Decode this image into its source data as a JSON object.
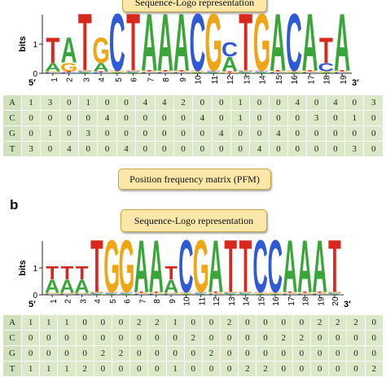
{
  "pfm_banner": "Position frequency matrix (PFM)",
  "colors": {
    "A": "#3aa63a",
    "C": "#2f5ad6",
    "G": "#f0a614",
    "T": "#d8271c"
  },
  "panel_a": {
    "letter": "",
    "banner": "Sequence-Logo representation",
    "ylabel": "bits",
    "yticks": [
      "1",
      "0"
    ],
    "five_prime": "5′",
    "three_prime": "3′",
    "positions": [
      "1",
      "2",
      "3",
      "4",
      "5",
      "6",
      "7",
      "8",
      "9",
      "10",
      "11",
      "12",
      "13",
      "14",
      "15",
      "16",
      "17",
      "18",
      "19"
    ],
    "matrix": [
      {
        "base": "A",
        "values": [
          "1",
          "3",
          "0",
          "1",
          "0",
          "0",
          "4",
          "4",
          "2",
          "0",
          "0",
          "1",
          "0",
          "0",
          "4",
          "0",
          "4",
          "0",
          "3"
        ]
      },
      {
        "base": "C",
        "values": [
          "0",
          "0",
          "0",
          "0",
          "4",
          "0",
          "0",
          "0",
          "0",
          "4",
          "0",
          "1",
          "0",
          "0",
          "0",
          "3",
          "0",
          "1",
          "0"
        ]
      },
      {
        "base": "G",
        "values": [
          "0",
          "1",
          "0",
          "3",
          "0",
          "0",
          "0",
          "0",
          "0",
          "0",
          "4",
          "0",
          "0",
          "4",
          "0",
          "0",
          "0",
          "0",
          "0"
        ]
      },
      {
        "base": "T",
        "values": [
          "3",
          "0",
          "4",
          "0",
          "0",
          "4",
          "0",
          "0",
          "0",
          "0",
          "0",
          "0",
          "4",
          "0",
          "0",
          "0",
          "0",
          "3",
          "0"
        ]
      }
    ]
  },
  "panel_b": {
    "letter": "b",
    "banner": "Sequence-Logo representation",
    "ylabel": "bits",
    "yticks": [
      "1",
      "0"
    ],
    "five_prime": "5′",
    "three_prime": "3′",
    "positions": [
      "1",
      "2",
      "3",
      "4",
      "5",
      "6",
      "7",
      "8",
      "9",
      "10",
      "11",
      "12",
      "13",
      "14",
      "15",
      "16",
      "17",
      "18",
      "19",
      "20"
    ],
    "matrix": [
      {
        "base": "A",
        "values": [
          "1",
          "1",
          "1",
          "0",
          "0",
          "0",
          "2",
          "2",
          "1",
          "0",
          "0",
          "2",
          "0",
          "0",
          "0",
          "0",
          "2",
          "2",
          "2",
          "0"
        ]
      },
      {
        "base": "C",
        "values": [
          "0",
          "0",
          "0",
          "0",
          "0",
          "0",
          "0",
          "0",
          "0",
          "2",
          "0",
          "0",
          "0",
          "0",
          "2",
          "2",
          "0",
          "0",
          "0",
          "0"
        ]
      },
      {
        "base": "G",
        "values": [
          "0",
          "0",
          "0",
          "0",
          "2",
          "2",
          "0",
          "0",
          "0",
          "0",
          "2",
          "0",
          "0",
          "0",
          "0",
          "0",
          "0",
          "0",
          "0",
          "0"
        ]
      },
      {
        "base": "T",
        "values": [
          "1",
          "1",
          "1",
          "2",
          "0",
          "0",
          "0",
          "0",
          "1",
          "0",
          "0",
          "0",
          "2",
          "2",
          "0",
          "0",
          "0",
          "0",
          "0",
          "2"
        ]
      }
    ]
  }
}
